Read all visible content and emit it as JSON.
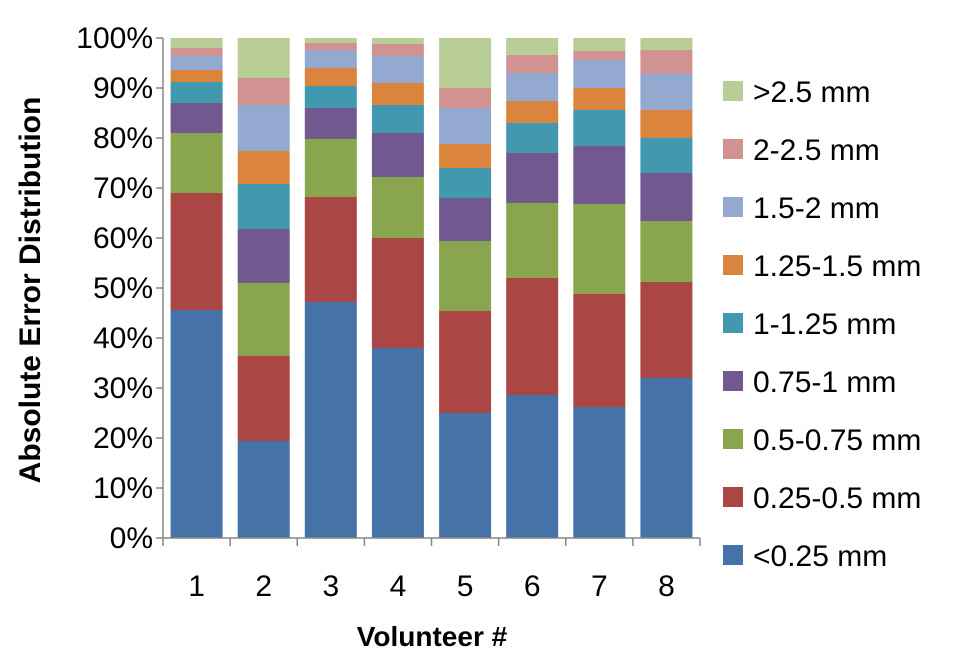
{
  "chart_data": {
    "type": "bar",
    "stacked": true,
    "percent": true,
    "xlabel": "Volunteer #",
    "ylabel": "Absolute Error Distribution",
    "categories": [
      "1",
      "2",
      "3",
      "4",
      "5",
      "6",
      "7",
      "8"
    ],
    "ylim": [
      0,
      100
    ],
    "yticks": [
      "0%",
      "10%",
      "20%",
      "30%",
      "40%",
      "50%",
      "60%",
      "70%",
      "80%",
      "90%",
      "100%"
    ],
    "grid": false,
    "legend_position": "right",
    "series": [
      {
        "name": "<0.25 mm",
        "color": "#4572A7",
        "values": [
          45.6,
          19.4,
          47.2,
          38.0,
          25.0,
          28.6,
          26.2,
          32.0
        ]
      },
      {
        "name": "0.25-0.5 mm",
        "color": "#AA4643",
        "values": [
          23.4,
          17.0,
          21.0,
          22.0,
          20.4,
          23.4,
          22.6,
          19.2
        ]
      },
      {
        "name": "0.5-0.75 mm",
        "color": "#89A54E",
        "values": [
          12.0,
          14.6,
          11.6,
          12.2,
          14.0,
          15.0,
          18.0,
          12.2
        ]
      },
      {
        "name": "0.75-1 mm",
        "color": "#71588F",
        "values": [
          6.0,
          10.8,
          6.2,
          8.8,
          8.6,
          10.0,
          11.6,
          9.6
        ]
      },
      {
        "name": "1-1.25 mm",
        "color": "#4198AF",
        "values": [
          4.2,
          9.0,
          4.4,
          5.6,
          6.0,
          6.0,
          7.2,
          7.0
        ]
      },
      {
        "name": "1.25-1.5 mm",
        "color": "#DB843D",
        "values": [
          2.4,
          6.6,
          3.6,
          4.4,
          4.8,
          4.4,
          4.4,
          5.6
        ]
      },
      {
        "name": "1.5-2 mm",
        "color": "#93A9CF",
        "values": [
          2.8,
          9.2,
          3.6,
          5.4,
          7.2,
          5.6,
          5.6,
          7.2
        ]
      },
      {
        "name": "2-2.5 mm",
        "color": "#D19392",
        "values": [
          1.6,
          5.4,
          1.4,
          2.4,
          4.0,
          3.6,
          1.8,
          4.8
        ]
      },
      {
        "name": ">2.5 mm",
        "color": "#B9CD96",
        "values": [
          2.0,
          8.0,
          1.0,
          1.2,
          10.0,
          3.4,
          2.6,
          2.4
        ]
      }
    ]
  }
}
